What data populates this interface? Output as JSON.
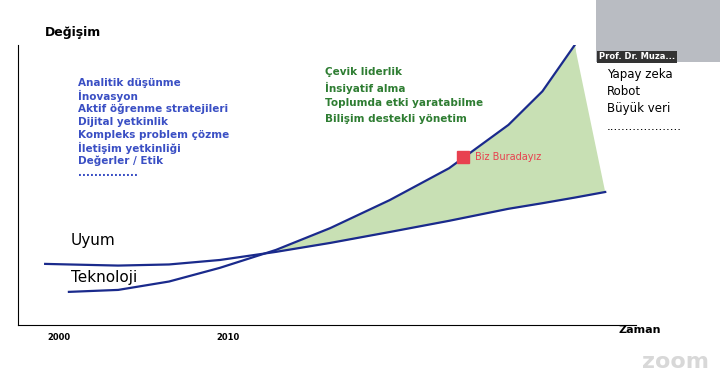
{
  "chart_data": {
    "type": "line",
    "xlabel": "Zaman",
    "ylabel": "Değişim",
    "x": [
      1999.2,
      2000.6,
      2003.5,
      2006.5,
      2009.5,
      2012.8,
      2016,
      2019.5,
      2023,
      2026.5,
      2028.5,
      2030.4,
      2032.2
    ],
    "xlim": [
      1997.6,
      2034
    ],
    "xticks": [
      2000,
      2010
    ],
    "ylim": [
      0,
      100
    ],
    "tick_labels": "x",
    "series": [
      {
        "name": "Uyum",
        "color": "#1a2a8c",
        "values": [
          21.8,
          21.6,
          21.2,
          21.6,
          23.2,
          26.1,
          29.3,
          33.2,
          37.2,
          41.5,
          43.5,
          45.5,
          47.5
        ]
      },
      {
        "name": "Teknoloji",
        "color": "#1a2a8c",
        "values": [
          null,
          11.8,
          12.5,
          15.5,
          20.4,
          26.8,
          34.6,
          44.6,
          56,
          71.5,
          83.5,
          100,
          null
        ]
      }
    ],
    "annotations": [
      {
        "text": "Biz Buradayız",
        "x": 2023.8,
        "y": 60,
        "color": "#e8414f"
      }
    ],
    "skills": [
      "Analitik düşünme",
      "İnovasyon",
      "Aktif öğrenme stratejileri",
      "Dijital yetkinlik",
      "Kompleks problem çözme",
      "İletişim yetkinliği",
      "Değerler / Etik",
      "..............."
    ],
    "leadership": [
      "Çevik liderlik",
      "İnsiyatif alma",
      "Toplumda etki yaratabilme",
      "Bilişim destekli yönetim"
    ],
    "technologies": [
      "Yapay zeka",
      "Robot",
      "Büyük veri",
      "...................."
    ],
    "presenter": "Prof. Dr. Muza...",
    "watermark": "zoom"
  }
}
